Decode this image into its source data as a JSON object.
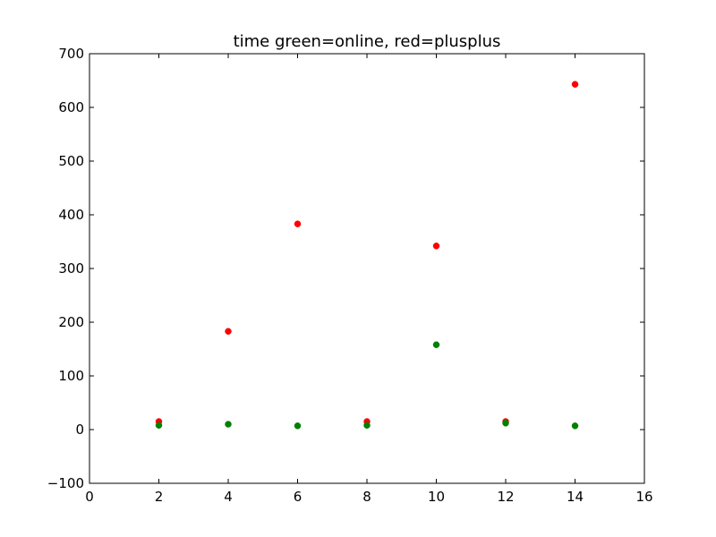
{
  "chart_data": {
    "type": "scatter",
    "title": "time green=online, red=plusplus",
    "xlabel": "",
    "ylabel": "",
    "xlim": [
      0,
      16
    ],
    "ylim": [
      -100,
      700
    ],
    "x_ticks": [
      0,
      2,
      4,
      6,
      8,
      10,
      12,
      14,
      16
    ],
    "y_ticks": [
      -100,
      0,
      100,
      200,
      300,
      400,
      500,
      600,
      700
    ],
    "x_tick_labels": [
      "0",
      "2",
      "4",
      "6",
      "8",
      "10",
      "12",
      "14",
      "16"
    ],
    "y_tick_labels": [
      "−100",
      "0",
      "100",
      "200",
      "300",
      "400",
      "500",
      "600",
      "700"
    ],
    "grid": false,
    "series": [
      {
        "color": "#ff0000",
        "x": [
          2,
          4,
          6,
          8,
          10,
          12,
          14
        ],
        "y": [
          15,
          183,
          383,
          15,
          342,
          15,
          643
        ]
      },
      {
        "color": "#008000",
        "x": [
          2,
          4,
          6,
          8,
          10,
          12,
          14
        ],
        "y": [
          8,
          10,
          7,
          8,
          158,
          12,
          7
        ]
      }
    ]
  }
}
